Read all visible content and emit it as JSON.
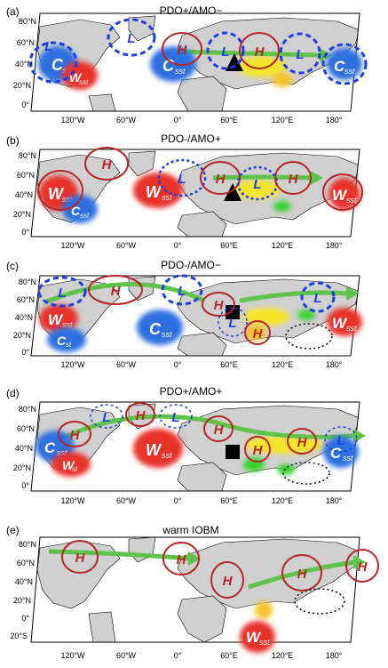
{
  "panels": [
    {
      "label": "(a)",
      "title": "PDO+/AMO−",
      "lat_labels": [
        "80°N",
        "60°N",
        "40°N",
        "20°N",
        "0°"
      ],
      "anomalies": [
        {
          "kind": "C",
          "text": "C",
          "sub": "sst",
          "color": "#2f6fe0"
        },
        {
          "kind": "W",
          "text": "W",
          "sub": "sst",
          "color": "#e8302c"
        },
        {
          "kind": "C",
          "text": "C",
          "sub": "sst",
          "color": "#2f6fe0"
        },
        {
          "kind": "C",
          "text": "C",
          "sub": "sst",
          "color": "#2f6fe0"
        }
      ],
      "circulation": [
        "L",
        "H",
        "L",
        "H",
        "L",
        "L"
      ]
    },
    {
      "label": "(b)",
      "title": "PDO-/AMO+",
      "lat_labels": [
        "80°N",
        "60°N",
        "40°N",
        "20°N",
        "0°"
      ],
      "anomalies": [
        {
          "kind": "W",
          "text": "W",
          "sub": "sst",
          "color": "#e8302c"
        },
        {
          "kind": "C",
          "text": "C",
          "sub": "sst",
          "color": "#2f6fe0"
        },
        {
          "kind": "W",
          "text": "W",
          "sub": "sst",
          "color": "#e8302c"
        },
        {
          "kind": "W",
          "text": "W",
          "sub": "sst",
          "color": "#e8302c"
        }
      ],
      "circulation": [
        "H",
        "L",
        "H",
        "L",
        "H",
        "H"
      ]
    },
    {
      "label": "(c)",
      "title": "PDO-/AMO−",
      "lat_labels": [
        "80°N",
        "60°N",
        "40°N",
        "20°N",
        "0°"
      ],
      "anomalies": [
        {
          "kind": "W",
          "text": "W",
          "sub": "sst",
          "color": "#e8302c"
        },
        {
          "kind": "C",
          "text": "C",
          "sub": "st",
          "color": "#2f6fe0"
        },
        {
          "kind": "C",
          "text": "C",
          "sub": "sst",
          "color": "#2f6fe0"
        },
        {
          "kind": "W",
          "text": "W",
          "sub": "sst",
          "color": "#e8302c"
        }
      ],
      "circulation": [
        "L",
        "H",
        "L",
        "H",
        "L",
        "H",
        "L"
      ]
    },
    {
      "label": "(d)",
      "title": "PDO+/AMO+",
      "lat_labels": [
        "80°N",
        "60°N",
        "40°N",
        "20°N",
        "0°"
      ],
      "anomalies": [
        {
          "kind": "C",
          "text": "C",
          "sub": "sst",
          "color": "#2f6fe0"
        },
        {
          "kind": "W",
          "text": "W",
          "sub": "st",
          "color": "#e8302c"
        },
        {
          "kind": "W",
          "text": "W",
          "sub": "sst",
          "color": "#e8302c"
        },
        {
          "kind": "C",
          "text": "C",
          "sub": "sst",
          "color": "#2f6fe0"
        }
      ],
      "circulation": [
        "H",
        "L",
        "H",
        "L",
        "H",
        "H",
        "H",
        "L"
      ]
    },
    {
      "label": "(e)",
      "title": "warm IOBM",
      "lat_labels": [
        "80°N",
        "60°N",
        "40°N",
        "20°N",
        "0°",
        "20°S"
      ],
      "anomalies": [
        {
          "kind": "W",
          "text": "W",
          "sub": "sst",
          "color": "#e8302c"
        }
      ],
      "circulation": [
        "H",
        "H",
        "H",
        "H",
        "H"
      ]
    }
  ],
  "lon_labels": [
    "120°W",
    "60°W",
    "0°",
    "60°E",
    "120°E",
    "180°"
  ],
  "colors": {
    "land": "#d0d0d0",
    "high": "#b82525",
    "low": "#1a3fe0",
    "jet": "#5fc24a",
    "warm": "#e8302c",
    "cold": "#2f6fe0",
    "yellow": "#f5e52a",
    "green": "#34d12a",
    "marker": "#000000"
  }
}
